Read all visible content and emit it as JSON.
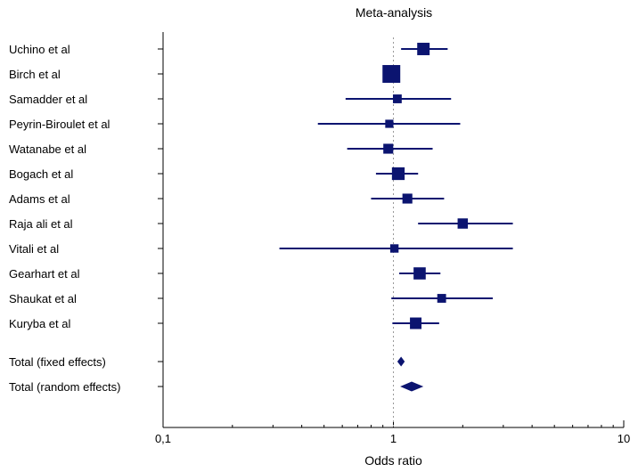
{
  "chart_data": {
    "type": "forest",
    "title": "Meta-analysis",
    "xlabel": "Odds ratio",
    "xscale": "log",
    "xlim": [
      0.1,
      10
    ],
    "xticks": [
      {
        "value": 0.1,
        "label": "0,1"
      },
      {
        "value": 1,
        "label": "1"
      },
      {
        "value": 10,
        "label": "10"
      }
    ],
    "reference_line": 1,
    "studies": [
      {
        "label": "Uchino et al",
        "or": 1.35,
        "lo": 1.08,
        "hi": 1.72,
        "weight": 2.2
      },
      {
        "label": "Birch et al",
        "or": 0.98,
        "lo": 0.95,
        "hi": 1.02,
        "weight": 4.5
      },
      {
        "label": "Samadder et al",
        "or": 1.04,
        "lo": 0.62,
        "hi": 1.78,
        "weight": 1.1
      },
      {
        "label": "Peyrin-Biroulet et al",
        "or": 0.96,
        "lo": 0.47,
        "hi": 1.95,
        "weight": 0.95
      },
      {
        "label": "Watanabe et al",
        "or": 0.95,
        "lo": 0.63,
        "hi": 1.48,
        "weight": 1.4
      },
      {
        "label": "Bogach et al",
        "or": 1.05,
        "lo": 0.84,
        "hi": 1.28,
        "weight": 2.3
      },
      {
        "label": "Adams et al",
        "or": 1.15,
        "lo": 0.8,
        "hi": 1.66,
        "weight": 1.4
      },
      {
        "label": "Raja ali et al",
        "or": 2.0,
        "lo": 1.28,
        "hi": 3.3,
        "weight": 1.5
      },
      {
        "label": "Vitali et al",
        "or": 1.01,
        "lo": 0.32,
        "hi": 3.3,
        "weight": 1.0
      },
      {
        "label": "Gearhart et al",
        "or": 1.3,
        "lo": 1.06,
        "hi": 1.6,
        "weight": 2.1
      },
      {
        "label": "Shaukat et al",
        "or": 1.62,
        "lo": 0.98,
        "hi": 2.7,
        "weight": 1.1
      },
      {
        "label": "Kuryba et al",
        "or": 1.25,
        "lo": 0.99,
        "hi": 1.58,
        "weight": 1.9
      }
    ],
    "totals": [
      {
        "label": "Total (fixed effects)",
        "or": 1.08,
        "lo": 1.04,
        "hi": 1.12
      },
      {
        "label": "Total (random effects)",
        "or": 1.2,
        "lo": 1.07,
        "hi": 1.35
      }
    ],
    "color": "#0b1470",
    "refline_color": "#9a9a9a"
  }
}
